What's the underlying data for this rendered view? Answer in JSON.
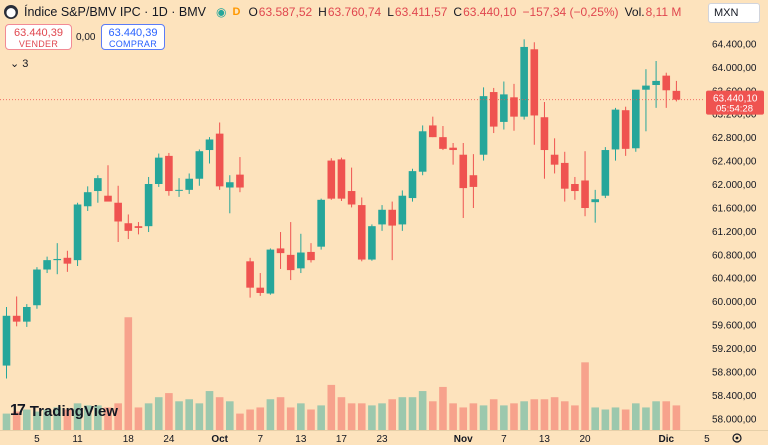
{
  "header": {
    "symbol": "Índice S&P/BMV IPC · 1D · BMV",
    "badge": "D",
    "open_label": "O",
    "open": "63.587,52",
    "high_label": "H",
    "high": "63.760,74",
    "low_label": "L",
    "low": "63.411,57",
    "close_label": "C",
    "close": "63.440,10",
    "change": "−157,34 (−0,25%)",
    "volume_label": "Vol.",
    "volume": "8,11 M"
  },
  "trade": {
    "sell_price": "63.440,39",
    "sell_label": "VENDER",
    "spread": "0,00",
    "buy_price": "63.440,39",
    "buy_label": "COMPRAR"
  },
  "indicators_count": "3",
  "currency": "MXN",
  "brand": "TradingView",
  "colors": {
    "up": "#26a69a",
    "down": "#ef5350",
    "background": "#fde3bd"
  },
  "chart_data": {
    "type": "candlestick",
    "price_axis": {
      "min": 57800,
      "max": 64800,
      "ticks": [
        58000,
        58400,
        58800,
        59200,
        59600,
        60000,
        60400,
        60800,
        61200,
        61600,
        62000,
        62400,
        62800,
        63200,
        63600,
        64000,
        64400
      ],
      "tick_labels": [
        "58.000,00",
        "58.400,00",
        "58.800,00",
        "59.200,00",
        "59.600,00",
        "60.000,00",
        "60.400,00",
        "60.800,00",
        "61.200,00",
        "61.600,00",
        "62.000,00",
        "62.400,00",
        "62.800,00",
        "63.200,00",
        "63.600,00",
        "64.000,00",
        "64.400,00"
      ]
    },
    "last_price": {
      "value": 63440.1,
      "label": "63.440,10",
      "countdown": "05:54:28"
    },
    "x_labels": [
      {
        "label": "5",
        "index": 3
      },
      {
        "label": "11",
        "index": 7
      },
      {
        "label": "18",
        "index": 12
      },
      {
        "label": "24",
        "index": 16
      },
      {
        "label": "Oct",
        "index": 21
      },
      {
        "label": "7",
        "index": 25
      },
      {
        "label": "13",
        "index": 29
      },
      {
        "label": "17",
        "index": 33
      },
      {
        "label": "23",
        "index": 37
      },
      {
        "label": "Nov",
        "index": 45
      },
      {
        "label": "7",
        "index": 49
      },
      {
        "label": "13",
        "index": 53
      },
      {
        "label": "20",
        "index": 57
      },
      {
        "label": "Dic",
        "index": 65
      },
      {
        "label": "5",
        "index": 69
      }
    ],
    "candles": [
      {
        "o": 58900,
        "h": 59900,
        "l": 58680,
        "c": 59750,
        "v": 0.8
      },
      {
        "o": 59750,
        "h": 60080,
        "l": 59570,
        "c": 59650,
        "v": 0.9
      },
      {
        "o": 59650,
        "h": 59950,
        "l": 59560,
        "c": 59900,
        "v": 1.0
      },
      {
        "o": 59930,
        "h": 60580,
        "l": 59870,
        "c": 60540,
        "v": 0.9
      },
      {
        "o": 60540,
        "h": 60760,
        "l": 60480,
        "c": 60700,
        "v": 1.0
      },
      {
        "o": 60700,
        "h": 60990,
        "l": 60460,
        "c": 60720,
        "v": 1.1
      },
      {
        "o": 60740,
        "h": 60860,
        "l": 60500,
        "c": 60640,
        "v": 1.0
      },
      {
        "o": 60700,
        "h": 61680,
        "l": 60600,
        "c": 61650,
        "v": 1.3
      },
      {
        "o": 61620,
        "h": 61960,
        "l": 61540,
        "c": 61860,
        "v": 1.2
      },
      {
        "o": 61880,
        "h": 62150,
        "l": 61680,
        "c": 62100,
        "v": 1.2
      },
      {
        "o": 61800,
        "h": 62320,
        "l": 61710,
        "c": 61700,
        "v": 1.1
      },
      {
        "o": 61680,
        "h": 61970,
        "l": 61010,
        "c": 61360,
        "v": 1.3
      },
      {
        "o": 61330,
        "h": 61480,
        "l": 61060,
        "c": 61200,
        "v": 5.5
      },
      {
        "o": 61280,
        "h": 61350,
        "l": 61140,
        "c": 61250,
        "v": 1.1
      },
      {
        "o": 61280,
        "h": 62120,
        "l": 61180,
        "c": 62000,
        "v": 1.3
      },
      {
        "o": 62000,
        "h": 62520,
        "l": 61950,
        "c": 62450,
        "v": 1.6
      },
      {
        "o": 62480,
        "h": 62530,
        "l": 61800,
        "c": 61880,
        "v": 1.8
      },
      {
        "o": 61890,
        "h": 62100,
        "l": 61780,
        "c": 61900,
        "v": 1.4
      },
      {
        "o": 61900,
        "h": 62180,
        "l": 61830,
        "c": 62090,
        "v": 1.5
      },
      {
        "o": 62090,
        "h": 62590,
        "l": 61970,
        "c": 62560,
        "v": 1.3
      },
      {
        "o": 62580,
        "h": 62800,
        "l": 62350,
        "c": 62760,
        "v": 1.9
      },
      {
        "o": 62860,
        "h": 63050,
        "l": 61900,
        "c": 61960,
        "v": 1.6
      },
      {
        "o": 61940,
        "h": 62150,
        "l": 61500,
        "c": 62030,
        "v": 1.4
      },
      {
        "o": 62160,
        "h": 62460,
        "l": 61860,
        "c": 61940,
        "v": 0.8
      },
      {
        "o": 60680,
        "h": 60740,
        "l": 60060,
        "c": 60230,
        "v": 1.0
      },
      {
        "o": 60230,
        "h": 60480,
        "l": 60090,
        "c": 60140,
        "v": 1.1
      },
      {
        "o": 60130,
        "h": 60900,
        "l": 60110,
        "c": 60880,
        "v": 1.5
      },
      {
        "o": 60900,
        "h": 61180,
        "l": 60550,
        "c": 60820,
        "v": 1.6
      },
      {
        "o": 60790,
        "h": 61350,
        "l": 60360,
        "c": 60530,
        "v": 1.1
      },
      {
        "o": 60560,
        "h": 61150,
        "l": 60480,
        "c": 60830,
        "v": 1.3
      },
      {
        "o": 60840,
        "h": 60990,
        "l": 60660,
        "c": 60700,
        "v": 1.0
      },
      {
        "o": 60930,
        "h": 61750,
        "l": 60880,
        "c": 61730,
        "v": 1.2
      },
      {
        "o": 62400,
        "h": 62440,
        "l": 61730,
        "c": 61750,
        "v": 2.2
      },
      {
        "o": 62420,
        "h": 62450,
        "l": 61710,
        "c": 61750,
        "v": 1.6
      },
      {
        "o": 61880,
        "h": 62280,
        "l": 61600,
        "c": 61650,
        "v": 1.3
      },
      {
        "o": 61640,
        "h": 61770,
        "l": 60680,
        "c": 60710,
        "v": 1.3
      },
      {
        "o": 60710,
        "h": 61310,
        "l": 60690,
        "c": 61280,
        "v": 1.2
      },
      {
        "o": 61310,
        "h": 61640,
        "l": 61200,
        "c": 61560,
        "v": 1.3
      },
      {
        "o": 61560,
        "h": 61700,
        "l": 60700,
        "c": 61290,
        "v": 1.5
      },
      {
        "o": 61310,
        "h": 61890,
        "l": 61200,
        "c": 61800,
        "v": 1.6
      },
      {
        "o": 61760,
        "h": 62260,
        "l": 61700,
        "c": 62220,
        "v": 1.6
      },
      {
        "o": 62210,
        "h": 63000,
        "l": 62150,
        "c": 62900,
        "v": 1.9
      },
      {
        "o": 63000,
        "h": 63150,
        "l": 62800,
        "c": 62800,
        "v": 1.4
      },
      {
        "o": 62800,
        "h": 62990,
        "l": 62580,
        "c": 62600,
        "v": 2.1
      },
      {
        "o": 62620,
        "h": 62700,
        "l": 62330,
        "c": 62580,
        "v": 1.3
      },
      {
        "o": 62500,
        "h": 62700,
        "l": 61420,
        "c": 61930,
        "v": 1.1
      },
      {
        "o": 62150,
        "h": 62510,
        "l": 61590,
        "c": 61950,
        "v": 1.3
      },
      {
        "o": 62500,
        "h": 63650,
        "l": 62400,
        "c": 63500,
        "v": 1.2
      },
      {
        "o": 63570,
        "h": 63640,
        "l": 62870,
        "c": 62980,
        "v": 1.5
      },
      {
        "o": 63060,
        "h": 63750,
        "l": 62930,
        "c": 63530,
        "v": 1.2
      },
      {
        "o": 63480,
        "h": 63710,
        "l": 62910,
        "c": 63150,
        "v": 1.3
      },
      {
        "o": 63150,
        "h": 64470,
        "l": 63100,
        "c": 64340,
        "v": 1.4
      },
      {
        "o": 64300,
        "h": 64420,
        "l": 62670,
        "c": 63170,
        "v": 1.5
      },
      {
        "o": 63140,
        "h": 63400,
        "l": 62090,
        "c": 62580,
        "v": 1.5
      },
      {
        "o": 62500,
        "h": 62780,
        "l": 62180,
        "c": 62330,
        "v": 1.6
      },
      {
        "o": 62360,
        "h": 62550,
        "l": 61700,
        "c": 61920,
        "v": 1.4
      },
      {
        "o": 62000,
        "h": 62120,
        "l": 61730,
        "c": 61880,
        "v": 1.2
      },
      {
        "o": 62060,
        "h": 62560,
        "l": 61450,
        "c": 61590,
        "v": 3.3
      },
      {
        "o": 61690,
        "h": 61900,
        "l": 61340,
        "c": 61740,
        "v": 1.1
      },
      {
        "o": 61800,
        "h": 62630,
        "l": 61760,
        "c": 62580,
        "v": 1.0
      },
      {
        "o": 62590,
        "h": 63300,
        "l": 62400,
        "c": 63270,
        "v": 1.1
      },
      {
        "o": 63260,
        "h": 63320,
        "l": 62480,
        "c": 62600,
        "v": 1.0
      },
      {
        "o": 62610,
        "h": 63600,
        "l": 62550,
        "c": 63610,
        "v": 1.3
      },
      {
        "o": 63610,
        "h": 63960,
        "l": 62900,
        "c": 63680,
        "v": 1.1
      },
      {
        "o": 63690,
        "h": 64100,
        "l": 63300,
        "c": 63760,
        "v": 1.4
      },
      {
        "o": 63850,
        "h": 63900,
        "l": 63300,
        "c": 63600,
        "v": 1.4
      },
      {
        "o": 63590,
        "h": 63760,
        "l": 63410,
        "c": 63440,
        "v": 1.2
      }
    ]
  }
}
